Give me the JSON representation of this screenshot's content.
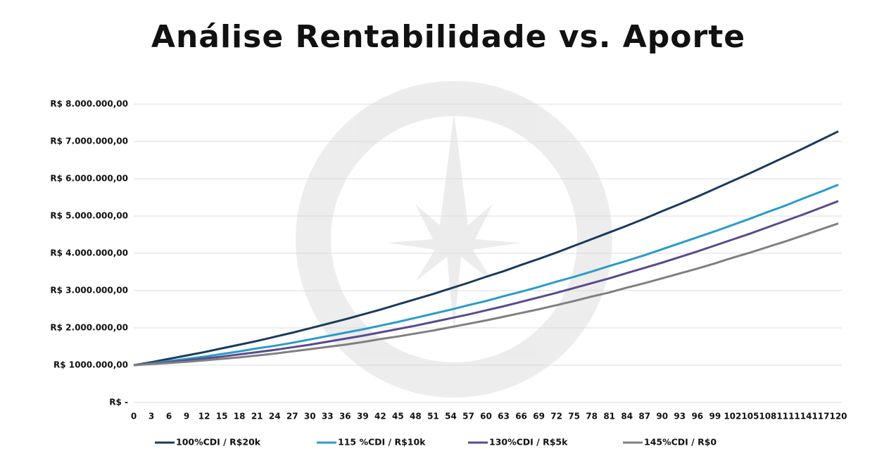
{
  "chart_data": {
    "type": "line",
    "title": "Análise Rentabilidade vs. Aporte",
    "x": [
      0,
      3,
      6,
      9,
      12,
      15,
      18,
      21,
      24,
      27,
      30,
      33,
      36,
      39,
      42,
      45,
      48,
      51,
      54,
      57,
      60,
      63,
      66,
      69,
      72,
      75,
      78,
      81,
      84,
      87,
      90,
      93,
      96,
      99,
      102,
      105,
      108,
      111,
      114,
      117,
      120
    ],
    "xlim": [
      0,
      120
    ],
    "ylim": [
      0,
      8000000
    ],
    "yticks": [
      {
        "value": 0,
        "label": "R$ -"
      },
      {
        "value": 1000000,
        "label": "R$ 1000.000,00"
      },
      {
        "value": 2000000,
        "label": "R$ 2.000.000,00"
      },
      {
        "value": 3000000,
        "label": "R$ 3.000.000,00"
      },
      {
        "value": 4000000,
        "label": "R$ 4.000.000,00"
      },
      {
        "value": 5000000,
        "label": "R$ 5.000.000,00"
      },
      {
        "value": 6000000,
        "label": "R$ 6.000.000,00"
      },
      {
        "value": 7000000,
        "label": "R$ 7.000.000,00"
      },
      {
        "value": 8000000,
        "label": "R$ 8.000.000,00"
      }
    ],
    "grid": true,
    "legend": "bottom",
    "series": [
      {
        "name": "100%CDI / R$20k",
        "color": "#1b3a5c",
        "values": [
          1000000,
          1080000,
          1170000,
          1260000,
          1350000,
          1450000,
          1550000,
          1650000,
          1760000,
          1870000,
          1990000,
          2110000,
          2230000,
          2360000,
          2490000,
          2630000,
          2770000,
          2910000,
          3060000,
          3210000,
          3370000,
          3520000,
          3690000,
          3850000,
          4020000,
          4200000,
          4380000,
          4560000,
          4740000,
          4930000,
          5130000,
          5320000,
          5520000,
          5730000,
          5940000,
          6150000,
          6370000,
          6590000,
          6810000,
          7040000,
          7270000
        ]
      },
      {
        "name": "115 %CDI / R$10k",
        "color": "#2a9cc8",
        "values": [
          1000000,
          1050000,
          1110000,
          1170000,
          1230000,
          1300000,
          1370000,
          1450000,
          1520000,
          1600000,
          1690000,
          1780000,
          1870000,
          1960000,
          2060000,
          2160000,
          2270000,
          2380000,
          2490000,
          2610000,
          2720000,
          2850000,
          2970000,
          3100000,
          3240000,
          3370000,
          3510000,
          3660000,
          3800000,
          3950000,
          4110000,
          4270000,
          4430000,
          4590000,
          4760000,
          4930000,
          5110000,
          5280000,
          5470000,
          5650000,
          5840000
        ]
      },
      {
        "name": "130%CDI / R$5k",
        "color": "#5a4a8e",
        "values": [
          1000000,
          1040000,
          1080000,
          1130000,
          1180000,
          1230000,
          1290000,
          1350000,
          1410000,
          1480000,
          1550000,
          1630000,
          1710000,
          1790000,
          1880000,
          1970000,
          2060000,
          2160000,
          2260000,
          2360000,
          2470000,
          2580000,
          2700000,
          2820000,
          2940000,
          3070000,
          3200000,
          3330000,
          3470000,
          3610000,
          3750000,
          3900000,
          4050000,
          4210000,
          4370000,
          4530000,
          4700000,
          4870000,
          5040000,
          5220000,
          5400000
        ]
      },
      {
        "name": "145%CDI / R$0",
        "color": "#808080",
        "values": [
          1000000,
          1030000,
          1060000,
          1090000,
          1130000,
          1170000,
          1210000,
          1260000,
          1310000,
          1370000,
          1430000,
          1490000,
          1550000,
          1620000,
          1700000,
          1770000,
          1850000,
          1930000,
          2020000,
          2110000,
          2200000,
          2300000,
          2400000,
          2500000,
          2610000,
          2720000,
          2840000,
          2950000,
          3080000,
          3200000,
          3330000,
          3460000,
          3590000,
          3730000,
          3880000,
          4020000,
          4170000,
          4320000,
          4480000,
          4640000,
          4800000
        ]
      }
    ]
  }
}
